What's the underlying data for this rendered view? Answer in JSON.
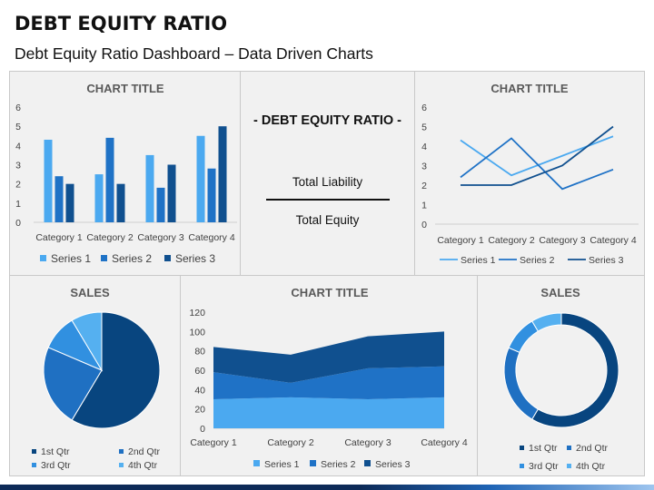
{
  "page": {
    "title": "DEBT EQUITY RATIO",
    "subtitle": "Debt Equity Ratio Dashboard – Data Driven Charts"
  },
  "ratio": {
    "heading": "- DEBT EQUITY RATIO -",
    "numerator": "Total Liability",
    "denominator": "Total Equity"
  },
  "colors": {
    "series1": "#4ba9f0",
    "series2": "#1f72c6",
    "series3": "#10508f",
    "qtr1": "#08457f",
    "qtr2": "#1f70c2",
    "qtr3": "#3190e0",
    "qtr4": "#55b0f0",
    "panel_bg": "#f1f1f1"
  },
  "chart_data": [
    {
      "id": "bar",
      "type": "bar",
      "title": "CHART TITLE",
      "categories": [
        "Category 1",
        "Category 2",
        "Category 3",
        "Category 4"
      ],
      "series": [
        {
          "name": "Series 1",
          "values": [
            4.3,
            2.5,
            3.5,
            4.5
          ]
        },
        {
          "name": "Series 2",
          "values": [
            2.4,
            4.4,
            1.8,
            2.8
          ]
        },
        {
          "name": "Series 3",
          "values": [
            2,
            2,
            3,
            5
          ]
        }
      ],
      "ylim": [
        0,
        6
      ],
      "yticks": [
        0,
        1,
        2,
        3,
        4,
        5,
        6
      ],
      "legend": "bottom"
    },
    {
      "id": "line",
      "type": "line",
      "title": "CHART TITLE",
      "categories": [
        "Category 1",
        "Category 2",
        "Category 3",
        "Category 4"
      ],
      "series": [
        {
          "name": "Series 1",
          "values": [
            4.3,
            2.5,
            3.5,
            4.5
          ]
        },
        {
          "name": "Series 2",
          "values": [
            2.4,
            4.4,
            1.8,
            2.8
          ]
        },
        {
          "name": "Series 3",
          "values": [
            2,
            2,
            3,
            5
          ]
        }
      ],
      "ylim": [
        0,
        6
      ],
      "yticks": [
        0,
        1,
        2,
        3,
        4,
        5,
        6
      ],
      "legend": "bottom"
    },
    {
      "id": "pie",
      "type": "pie",
      "title": "SALES",
      "labels": [
        "1st Qtr",
        "2nd Qtr",
        "3rd Qtr",
        "4th Qtr"
      ],
      "values": [
        8.2,
        3.2,
        1.4,
        1.2
      ],
      "legend": "bottom"
    },
    {
      "id": "area",
      "type": "area",
      "title": "CHART TITLE",
      "categories": [
        "Category 1",
        "Category 2",
        "Category 3",
        "Category 4"
      ],
      "series": [
        {
          "name": "Series 1",
          "values": [
            30,
            32,
            30,
            32
          ]
        },
        {
          "name": "Series 2",
          "values": [
            28,
            15,
            32,
            32
          ]
        },
        {
          "name": "Series 3",
          "values": [
            26,
            29,
            33,
            36
          ]
        }
      ],
      "stacked": true,
      "ylim": [
        0,
        120
      ],
      "yticks": [
        0,
        20,
        40,
        60,
        80,
        100,
        120
      ],
      "legend": "bottom"
    },
    {
      "id": "donut",
      "type": "pie",
      "subtype": "donut",
      "title": "SALES",
      "labels": [
        "1st Qtr",
        "2nd Qtr",
        "3rd Qtr",
        "4th Qtr"
      ],
      "values": [
        8.2,
        3.2,
        1.4,
        1.2
      ],
      "legend": "bottom"
    }
  ]
}
